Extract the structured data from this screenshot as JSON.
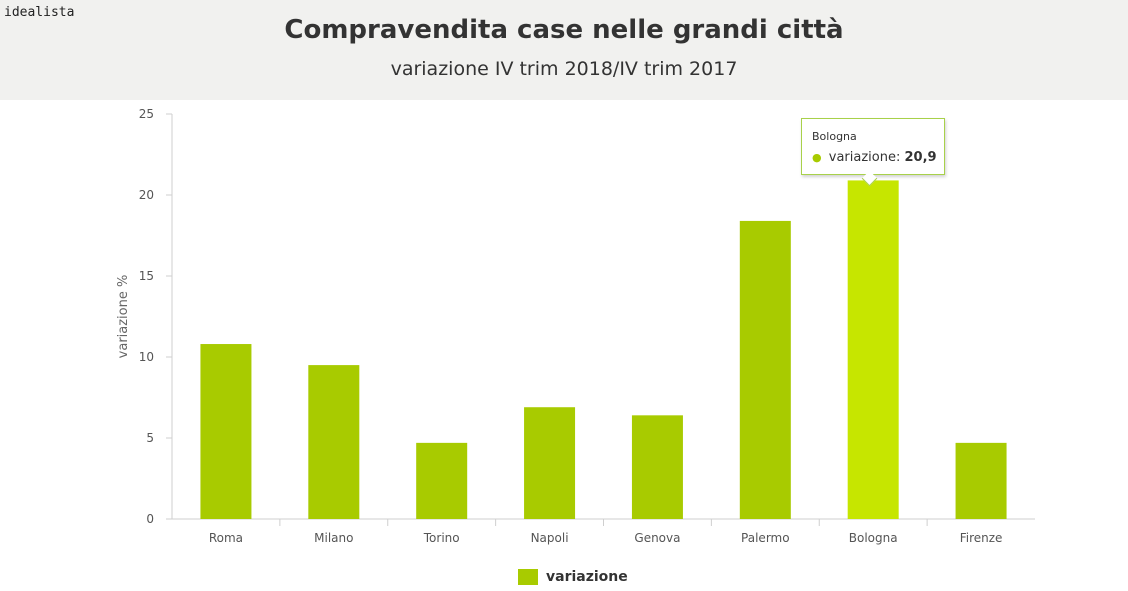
{
  "brand": {
    "logo_text": "idealista"
  },
  "header": {
    "title": "Compravendita case nelle grandi città",
    "subtitle": "variazione IV trim 2018/IV trim 2017"
  },
  "colors": {
    "bar": "#a8cb00",
    "bar_highlight": "#c6e600",
    "header_bg": "#f1f1ef"
  },
  "tooltip": {
    "title": "Bologna",
    "series_label": "variazione:",
    "value": "20,9"
  },
  "legend": {
    "label": "variazione"
  },
  "chart_data": {
    "type": "bar",
    "categories": [
      "Roma",
      "Milano",
      "Torino",
      "Napoli",
      "Genova",
      "Palermo",
      "Bologna",
      "Firenze"
    ],
    "series": [
      {
        "name": "variazione",
        "values": [
          10.8,
          9.5,
          4.7,
          6.9,
          6.4,
          18.4,
          20.9,
          4.7
        ]
      }
    ],
    "ylabel": "variazione %",
    "ylim": [
      0,
      25
    ],
    "yticks": [
      0,
      5,
      10,
      15,
      20,
      25
    ],
    "highlighted_category": "Bologna",
    "legend_position": "bottom",
    "grid": false
  }
}
